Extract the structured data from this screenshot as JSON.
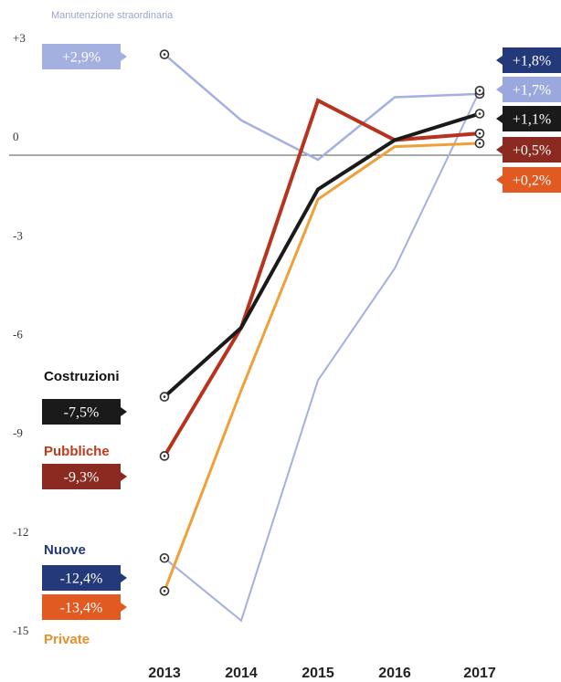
{
  "subtitle": "Manutenzione straordinaria",
  "chart_data": {
    "type": "line",
    "x": [
      "2013",
      "2014",
      "2015",
      "2016",
      "2017"
    ],
    "ylim": [
      -15,
      3
    ],
    "yticks": [
      "+3",
      "0",
      "-3",
      "-6",
      "-9",
      "-12",
      "-15"
    ],
    "series": [
      {
        "key": "manut",
        "values": [
          2.9,
          0.9,
          -0.3,
          1.6,
          1.7
        ],
        "color": "#a3b0e0",
        "width": 2.5
      },
      {
        "key": "nuove",
        "values": [
          -12.4,
          -14.3,
          -7.0,
          -3.6,
          1.8
        ],
        "color": "#a3b0e0",
        "width": 2
      },
      {
        "key": "private",
        "values": [
          -13.4,
          -7.3,
          -1.5,
          0.1,
          0.2
        ],
        "color": "#f0a038",
        "width": 3
      },
      {
        "key": "pubbliche",
        "values": [
          -9.3,
          -5.4,
          1.5,
          0.3,
          0.5
        ],
        "color": "#b8321e",
        "width": 4
      },
      {
        "key": "costruzioni",
        "values": [
          -7.5,
          -5.4,
          -1.2,
          0.3,
          1.1
        ],
        "color": "#1a1a1a",
        "width": 4
      }
    ],
    "start_labels": [
      {
        "text": "+2,9%",
        "color": "#a3b0e0"
      },
      {
        "text": "-7,5%",
        "color": "#1a1a1a",
        "name": "Costruzioni",
        "name_color": "#111111"
      },
      {
        "text": "-9,3%",
        "color": "#8a2a20",
        "name": "Pubbliche",
        "name_color": "#c0391b"
      },
      {
        "text": "-12,4%",
        "color": "#23397a",
        "name": "Nuove",
        "name_color": "#23397a"
      },
      {
        "text": "-13,4%",
        "color": "#e05a22",
        "name": "Private",
        "name_color": "#e8902a"
      }
    ],
    "end_labels": [
      {
        "text": "+1,8%",
        "color": "#23397a"
      },
      {
        "text": "+1,7%",
        "color": "#9aa8de"
      },
      {
        "text": "+1,1%",
        "color": "#1a1a1a"
      },
      {
        "text": "+0,5%",
        "color": "#8a2a20"
      },
      {
        "text": "+0,2%",
        "color": "#e05a22"
      }
    ]
  }
}
